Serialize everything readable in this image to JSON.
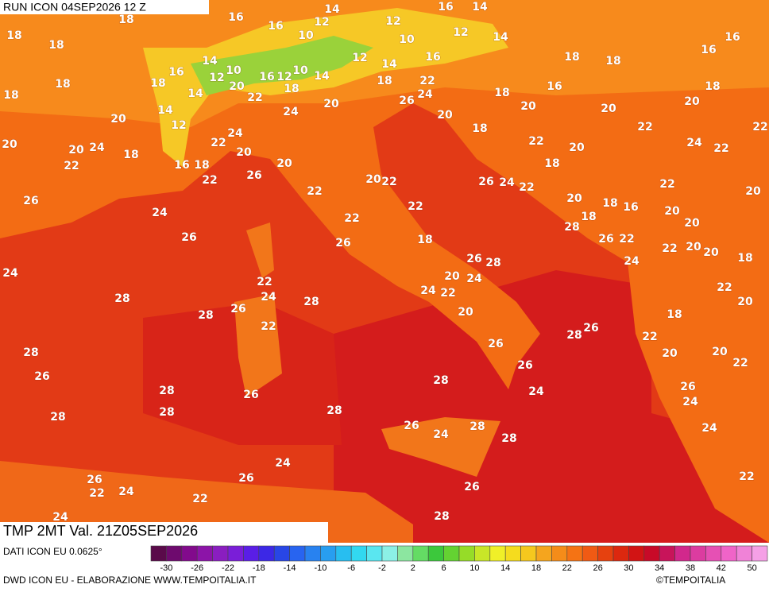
{
  "header": {
    "run": "RUN ICON 04SEP2026 12 Z",
    "field": "TMP 2MT Val. 21Z05SEP2026"
  },
  "footer": {
    "source": "DATI ICON EU 0.0625°",
    "credit": "DWD ICON EU - ELABORAZIONE WWW.TEMPOITALIA.IT",
    "copyright": "©TEMPOITALIA"
  },
  "colorbar": {
    "ticks": [
      -30,
      -26,
      -22,
      -18,
      -14,
      -10,
      -6,
      -2,
      2,
      6,
      10,
      14,
      18,
      22,
      26,
      30,
      34,
      38,
      42,
      50
    ]
  },
  "map_labels": [
    16,
    14,
    16,
    14,
    18,
    18,
    18,
    16,
    10,
    12,
    12,
    10,
    12,
    14,
    16,
    12,
    14,
    16,
    16,
    18,
    18,
    14,
    16,
    10,
    12,
    18,
    16,
    12,
    10,
    14,
    18,
    20,
    14,
    22,
    18,
    22,
    24,
    26,
    18,
    16,
    18,
    18,
    18,
    14,
    20,
    24,
    20,
    20,
    20,
    12,
    20,
    20,
    18,
    22,
    22,
    24,
    22,
    20,
    20,
    24,
    18,
    22,
    20,
    24,
    22,
    22,
    16,
    18,
    20,
    20,
    26,
    22,
    18,
    20,
    22,
    26,
    24,
    22,
    22,
    20,
    22,
    26,
    20,
    18,
    16,
    20,
    24,
    22,
    22,
    18,
    20,
    28,
    26,
    26,
    18,
    26,
    22,
    22,
    20,
    20,
    18,
    26,
    28,
    24,
    24,
    20,
    24,
    22,
    22,
    28,
    24,
    28,
    24,
    22,
    20,
    26,
    28,
    20,
    18,
    22,
    26,
    28,
    22,
    26,
    20,
    20,
    22,
    28,
    26,
    26,
    28,
    26,
    28,
    24,
    24,
    26,
    28,
    28,
    28,
    26,
    28,
    24,
    24,
    28,
    24,
    26,
    26,
    22,
    24,
    22,
    26,
    22,
    24,
    28
  ]
}
